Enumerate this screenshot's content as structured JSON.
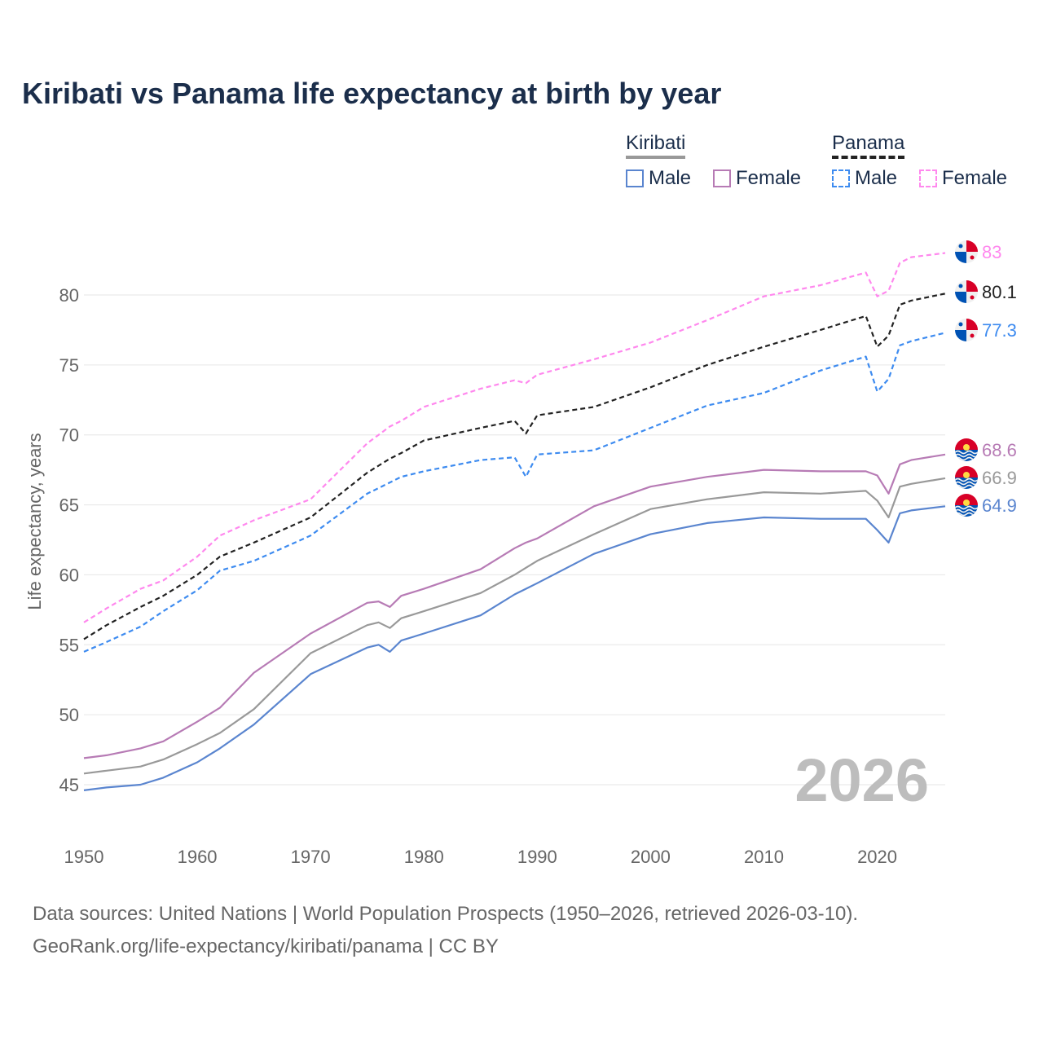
{
  "title": "Kiribati vs Panama life expectancy at birth by year",
  "legend": {
    "kiribati": {
      "label": "Kiribati",
      "male": "Male",
      "female": "Female"
    },
    "panama": {
      "label": "Panama",
      "male": "Male",
      "female": "Female"
    }
  },
  "watermark_year": "2026",
  "footer": {
    "line1": "Data sources: United Nations | World Population Prospects (1950–2026, retrieved 2026-03-10).",
    "line2": "GeoRank.org/life-expectancy/kiribati/panama | CC BY"
  },
  "chart_data": {
    "type": "line",
    "title": "Kiribati vs Panama life expectancy at birth by year",
    "xlabel": "",
    "ylabel": "Life expectancy, years",
    "xlim": [
      1950,
      2026
    ],
    "ylim": [
      42.5,
      83.5
    ],
    "xticks": [
      1950,
      1960,
      1970,
      1980,
      1990,
      2000,
      2010,
      2020
    ],
    "yticks": [
      45,
      50,
      55,
      60,
      65,
      70,
      75,
      80
    ],
    "grid": true,
    "legend_position": "top-right",
    "x": [
      1950,
      1952,
      1955,
      1957,
      1960,
      1962,
      1965,
      1970,
      1975,
      1976,
      1977,
      1978,
      1980,
      1985,
      1988,
      1989,
      1990,
      1995,
      2000,
      2005,
      2010,
      2015,
      2019,
      2020,
      2021,
      2022,
      2023,
      2026
    ],
    "series": [
      {
        "name": "Panama Female",
        "color": "#ff88ee",
        "dashed": true,
        "country": "panama",
        "end_label": "83",
        "values": [
          56.6,
          57.6,
          59.0,
          59.6,
          61.3,
          62.8,
          63.9,
          65.4,
          69.4,
          70.0,
          70.6,
          71.0,
          72.0,
          73.3,
          73.9,
          73.7,
          74.3,
          75.4,
          76.6,
          78.2,
          79.9,
          80.7,
          81.6,
          79.9,
          80.3,
          82.3,
          82.7,
          83.0
        ]
      },
      {
        "name": "Panama",
        "color": "#222222",
        "dashed": true,
        "country": "panama",
        "end_label": "80.1",
        "values": [
          55.4,
          56.4,
          57.7,
          58.5,
          60.0,
          61.3,
          62.3,
          64.1,
          67.3,
          67.8,
          68.3,
          68.7,
          69.6,
          70.5,
          71.0,
          70.1,
          71.4,
          72.0,
          73.4,
          75.0,
          76.3,
          77.5,
          78.5,
          76.3,
          77.1,
          79.3,
          79.6,
          80.1
        ]
      },
      {
        "name": "Panama Male",
        "color": "#3d8bf0",
        "dashed": true,
        "country": "panama",
        "end_label": "77.3",
        "values": [
          54.5,
          55.2,
          56.3,
          57.4,
          58.9,
          60.3,
          61.0,
          62.8,
          65.8,
          66.2,
          66.6,
          67.0,
          67.4,
          68.2,
          68.4,
          67.0,
          68.6,
          68.9,
          70.5,
          72.1,
          73.0,
          74.6,
          75.6,
          73.1,
          74.0,
          76.4,
          76.7,
          77.3
        ]
      },
      {
        "name": "Kiribati Female",
        "color": "#b77bb5",
        "dashed": false,
        "country": "kiribati",
        "end_label": "68.6",
        "values": [
          46.9,
          47.1,
          47.6,
          48.1,
          49.5,
          50.5,
          53.0,
          55.8,
          58.0,
          58.1,
          57.7,
          58.5,
          59.0,
          60.4,
          61.9,
          62.3,
          62.6,
          64.9,
          66.3,
          67.0,
          67.5,
          67.4,
          67.4,
          67.1,
          65.8,
          67.9,
          68.2,
          68.6
        ]
      },
      {
        "name": "Kiribati",
        "color": "#999999",
        "dashed": false,
        "country": "kiribati",
        "end_label": "66.9",
        "values": [
          45.8,
          46.0,
          46.3,
          46.8,
          47.9,
          48.7,
          50.4,
          54.4,
          56.4,
          56.6,
          56.2,
          56.9,
          57.4,
          58.7,
          60.0,
          60.5,
          61.0,
          62.9,
          64.7,
          65.4,
          65.9,
          65.8,
          66.0,
          65.3,
          64.1,
          66.3,
          66.5,
          66.9
        ]
      },
      {
        "name": "Kiribati Male",
        "color": "#5a85cf",
        "dashed": false,
        "country": "kiribati",
        "end_label": "64.9",
        "values": [
          44.6,
          44.8,
          45.0,
          45.5,
          46.6,
          47.6,
          49.3,
          52.9,
          54.8,
          55.0,
          54.5,
          55.3,
          55.8,
          57.1,
          58.6,
          59.0,
          59.4,
          61.5,
          62.9,
          63.7,
          64.1,
          64.0,
          64.0,
          63.2,
          62.3,
          64.4,
          64.6,
          64.9
        ]
      }
    ]
  }
}
